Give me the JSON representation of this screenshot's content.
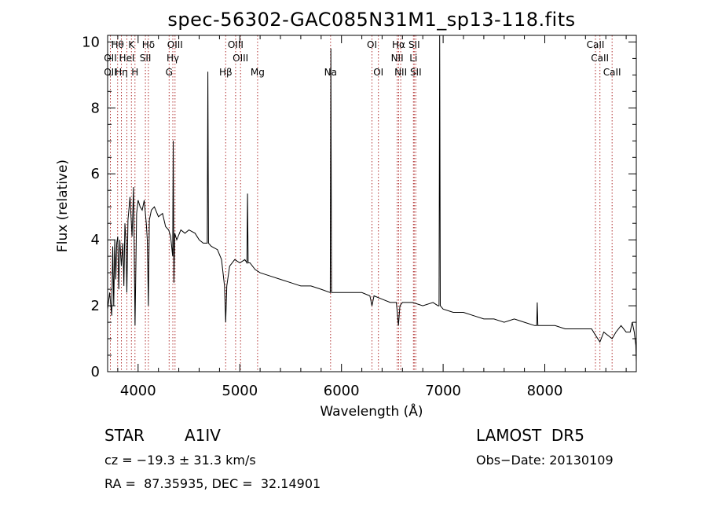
{
  "chart_data": {
    "type": "line",
    "title": "spec-56302-GAC085N31M1_sp13-118.fits",
    "xlabel": "Wavelength (Å)",
    "ylabel": "Flux (relative)",
    "xlim": [
      3700,
      8900
    ],
    "ylim": [
      0,
      10.2
    ],
    "xticks": [
      {
        "value": 4000,
        "label": "4000"
      },
      {
        "value": 5000,
        "label": "5000"
      },
      {
        "value": 6000,
        "label": "6000"
      },
      {
        "value": 7000,
        "label": "7000"
      },
      {
        "value": 8000,
        "label": "8000"
      }
    ],
    "yticks": [
      {
        "value": 0,
        "label": "0"
      },
      {
        "value": 2,
        "label": "2"
      },
      {
        "value": 4,
        "label": "4"
      },
      {
        "value": 6,
        "label": "6"
      },
      {
        "value": 8,
        "label": "8"
      },
      {
        "value": 10,
        "label": "10"
      }
    ],
    "spectrum": {
      "x": [
        3700,
        3720,
        3740,
        3750,
        3760,
        3770,
        3780,
        3790,
        3800,
        3810,
        3820,
        3835,
        3850,
        3860,
        3870,
        3880,
        3889,
        3900,
        3920,
        3940,
        3955,
        3970,
        3985,
        4000,
        4020,
        4040,
        4060,
        4080,
        4090,
        4101,
        4110,
        4130,
        4160,
        4200,
        4240,
        4270,
        4300,
        4320,
        4340,
        4345,
        4352,
        4360,
        4380,
        4420,
        4460,
        4500,
        4560,
        4600,
        4640,
        4680,
        4686,
        4692,
        4720,
        4780,
        4820,
        4850,
        4861,
        4872,
        4900,
        4950,
        5000,
        5050,
        5070,
        5076,
        5082,
        5100,
        5150,
        5200,
        5300,
        5400,
        5500,
        5600,
        5700,
        5800,
        5890,
        5896,
        5902,
        5960,
        6000,
        6100,
        6200,
        6280,
        6300,
        6320,
        6400,
        6480,
        6540,
        6560,
        6575,
        6600,
        6700,
        6800,
        6900,
        6950,
        6960,
        6966,
        6972,
        7000,
        7100,
        7200,
        7300,
        7400,
        7500,
        7600,
        7700,
        7800,
        7900,
        7920,
        7926,
        7932,
        8000,
        8100,
        8200,
        8300,
        8400,
        8460,
        8500,
        8542,
        8580,
        8662,
        8700,
        8750,
        8800,
        8840,
        8860,
        8880,
        8895,
        8900
      ],
      "y": [
        1.9,
        2.4,
        1.7,
        3.8,
        2.0,
        4.0,
        2.8,
        3.9,
        4.1,
        2.5,
        4.0,
        3.2,
        3.9,
        2.6,
        4.5,
        4.0,
        2.4,
        4.6,
        5.3,
        4.1,
        5.6,
        1.4,
        4.8,
        5.2,
        5.0,
        4.9,
        5.2,
        4.5,
        4.0,
        2.0,
        4.6,
        4.9,
        5.0,
        4.7,
        4.8,
        4.4,
        4.3,
        4.1,
        3.5,
        7.0,
        2.7,
        4.2,
        4.0,
        4.3,
        4.2,
        4.3,
        4.2,
        4.0,
        3.9,
        3.9,
        9.1,
        3.9,
        3.8,
        3.7,
        3.4,
        2.6,
        1.5,
        2.6,
        3.2,
        3.4,
        3.3,
        3.4,
        3.3,
        5.4,
        3.3,
        3.3,
        3.1,
        3.0,
        2.9,
        2.8,
        2.7,
        2.6,
        2.6,
        2.5,
        2.4,
        9.8,
        2.4,
        2.4,
        2.4,
        2.4,
        2.4,
        2.3,
        2.0,
        2.3,
        2.2,
        2.1,
        2.1,
        1.4,
        2.0,
        2.1,
        2.1,
        2.0,
        2.1,
        2.0,
        2.0,
        10.2,
        2.0,
        1.9,
        1.8,
        1.8,
        1.7,
        1.6,
        1.6,
        1.5,
        1.6,
        1.5,
        1.4,
        1.4,
        2.1,
        1.4,
        1.4,
        1.4,
        1.3,
        1.3,
        1.3,
        1.3,
        1.1,
        0.9,
        1.2,
        1.0,
        1.2,
        1.4,
        1.2,
        1.2,
        1.5,
        1.2,
        0.8,
        0.3
      ]
    },
    "line_labels": [
      {
        "label": "Hθ",
        "wavelength": 3798,
        "row": 0
      },
      {
        "label": "K",
        "wavelength": 3934,
        "row": 0
      },
      {
        "label": "Hδ",
        "wavelength": 4101,
        "row": 0
      },
      {
        "label": "OIII",
        "wavelength": 4363,
        "row": 0
      },
      {
        "label": "OIII",
        "wavelength": 4959,
        "row": 0
      },
      {
        "label": "OI",
        "wavelength": 6300,
        "row": 0
      },
      {
        "label": "Hα",
        "wavelength": 6563,
        "row": 0
      },
      {
        "label": "SII",
        "wavelength": 6716,
        "row": 0
      },
      {
        "label": "CaII",
        "wavelength": 8498,
        "row": 0
      },
      {
        "label": "OII",
        "wavelength": 3727,
        "row": 1
      },
      {
        "label": "HeI",
        "wavelength": 3889,
        "row": 1
      },
      {
        "label": "SII",
        "wavelength": 4072,
        "row": 1
      },
      {
        "label": "Hγ",
        "wavelength": 4341,
        "row": 1
      },
      {
        "label": "OIII",
        "wavelength": 5007,
        "row": 1
      },
      {
        "label": "NII",
        "wavelength": 6548,
        "row": 1
      },
      {
        "label": "Li",
        "wavelength": 6708,
        "row": 1
      },
      {
        "label": "CaII",
        "wavelength": 8542,
        "row": 1
      },
      {
        "label": "OII",
        "wavelength": 3727,
        "row": 2
      },
      {
        "label": "Hη",
        "wavelength": 3835,
        "row": 2
      },
      {
        "label": "H",
        "wavelength": 3969,
        "row": 2
      },
      {
        "label": "G",
        "wavelength": 4305,
        "row": 2
      },
      {
        "label": "Hβ",
        "wavelength": 4861,
        "row": 2
      },
      {
        "label": "Mg",
        "wavelength": 5175,
        "row": 2
      },
      {
        "label": "Na",
        "wavelength": 5893,
        "row": 2
      },
      {
        "label": "OI",
        "wavelength": 6363,
        "row": 2
      },
      {
        "label": "NII",
        "wavelength": 6583,
        "row": 2
      },
      {
        "label": "SII",
        "wavelength": 6731,
        "row": 2
      },
      {
        "label": "CaII",
        "wavelength": 8662,
        "row": 2
      }
    ],
    "line_markers": [
      3727,
      3798,
      3835,
      3889,
      3934,
      3969,
      4072,
      4101,
      4305,
      4341,
      4363,
      4861,
      4959,
      5007,
      5175,
      5893,
      6300,
      6363,
      6548,
      6563,
      6583,
      6708,
      6716,
      6731,
      8498,
      8542,
      8662
    ],
    "colors": {
      "spectrum": "#000000",
      "line_markers": "#b03030",
      "axes": "#000000"
    }
  },
  "info": {
    "object_class": "STAR",
    "subclass": "A1IV",
    "survey": "LAMOST  DR5",
    "cz": "cz = −19.3 ± 31.3 km/s",
    "obs_date": "Obs−Date: 20130109",
    "coords": "RA =  87.35935, DEC =  32.14901"
  }
}
